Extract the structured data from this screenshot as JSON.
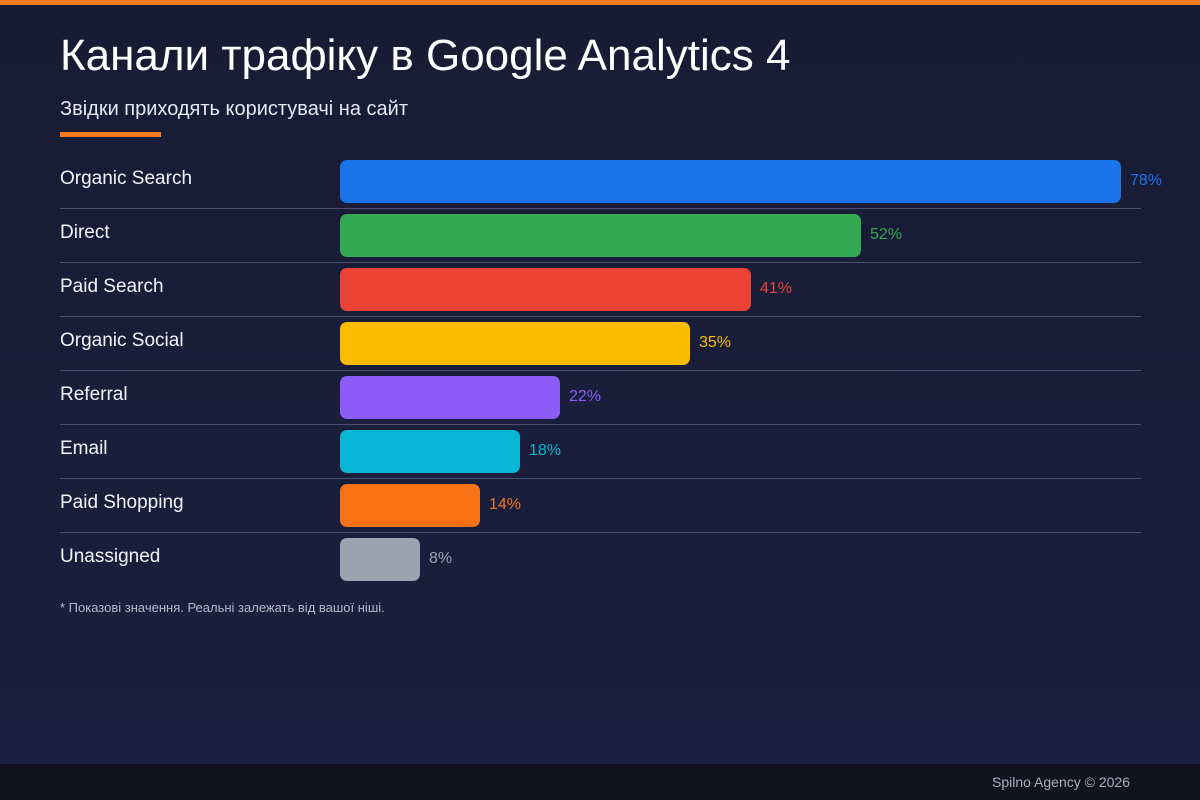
{
  "header": {
    "title": "Канали трафіку в Google Analytics 4",
    "subtitle": "Звідки приходять користувачі на сайт"
  },
  "chart_data": {
    "type": "bar",
    "orientation": "horizontal",
    "categories": [
      "Organic Search",
      "Direct",
      "Paid Search",
      "Organic Social",
      "Referral",
      "Email",
      "Paid Shopping",
      "Unassigned"
    ],
    "values": [
      78,
      52,
      41,
      35,
      22,
      18,
      14,
      8
    ],
    "value_labels": [
      "78%",
      "52%",
      "41%",
      "35%",
      "22%",
      "18%",
      "14%",
      "8%"
    ],
    "colors": [
      "#1a73e8",
      "#34a853",
      "#ea4335",
      "#fbbc04",
      "#8b5cf6",
      "#06b6d4",
      "#f97316",
      "#9ca3af"
    ],
    "unit": "%",
    "xlim": [
      0,
      78
    ],
    "grid": false,
    "legend": "none"
  },
  "footnote": "* Показові значення. Реальні залежать від вашої ніші.",
  "footer": {
    "text": "Spilno Agency © 2026"
  },
  "colors": {
    "accent": "#fb7a1e",
    "background": "#1a1e38"
  }
}
